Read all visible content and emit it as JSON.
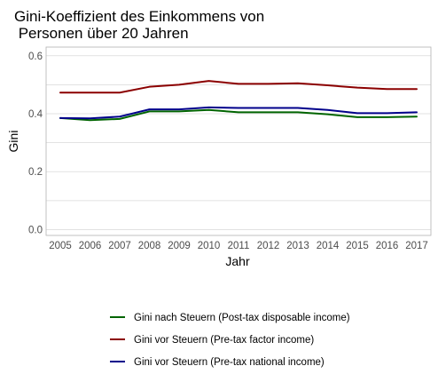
{
  "chart_data": {
    "type": "line",
    "title_lines": [
      "Gini-Koeffizient des Einkommens von",
      " Personen über 20 Jahren"
    ],
    "xlabel": "Jahr",
    "ylabel": "Gini",
    "x": [
      2005,
      2006,
      2007,
      2008,
      2009,
      2010,
      2011,
      2012,
      2013,
      2014,
      2015,
      2016,
      2017
    ],
    "x_ticks": [
      "2005",
      "2006",
      "2007",
      "2008",
      "2009",
      "2010",
      "2011",
      "2012",
      "2013",
      "2014",
      "2015",
      "2016",
      "2017"
    ],
    "y_ticks": [
      "0.0",
      "0.2",
      "0.4",
      "0.6"
    ],
    "ylim": [
      -0.02,
      0.63
    ],
    "grid": true,
    "legend_position": "bottom",
    "series": [
      {
        "name": "Gini nach Steuern (Post-tax disposable income)",
        "color": "#006400",
        "values": [
          0.385,
          0.378,
          0.382,
          0.408,
          0.408,
          0.413,
          0.405,
          0.405,
          0.405,
          0.398,
          0.388,
          0.388,
          0.39
        ]
      },
      {
        "name": "Gini vor Steuern (Pre-tax factor income)",
        "color": "#8b0000",
        "values": [
          0.473,
          0.473,
          0.473,
          0.493,
          0.5,
          0.513,
          0.503,
          0.503,
          0.505,
          0.498,
          0.49,
          0.485,
          0.485
        ]
      },
      {
        "name": "Gini vor Steuern (Pre-tax national income)",
        "color": "#00008b",
        "values": [
          0.385,
          0.384,
          0.39,
          0.415,
          0.415,
          0.422,
          0.42,
          0.42,
          0.42,
          0.413,
          0.402,
          0.402,
          0.405
        ]
      }
    ]
  }
}
